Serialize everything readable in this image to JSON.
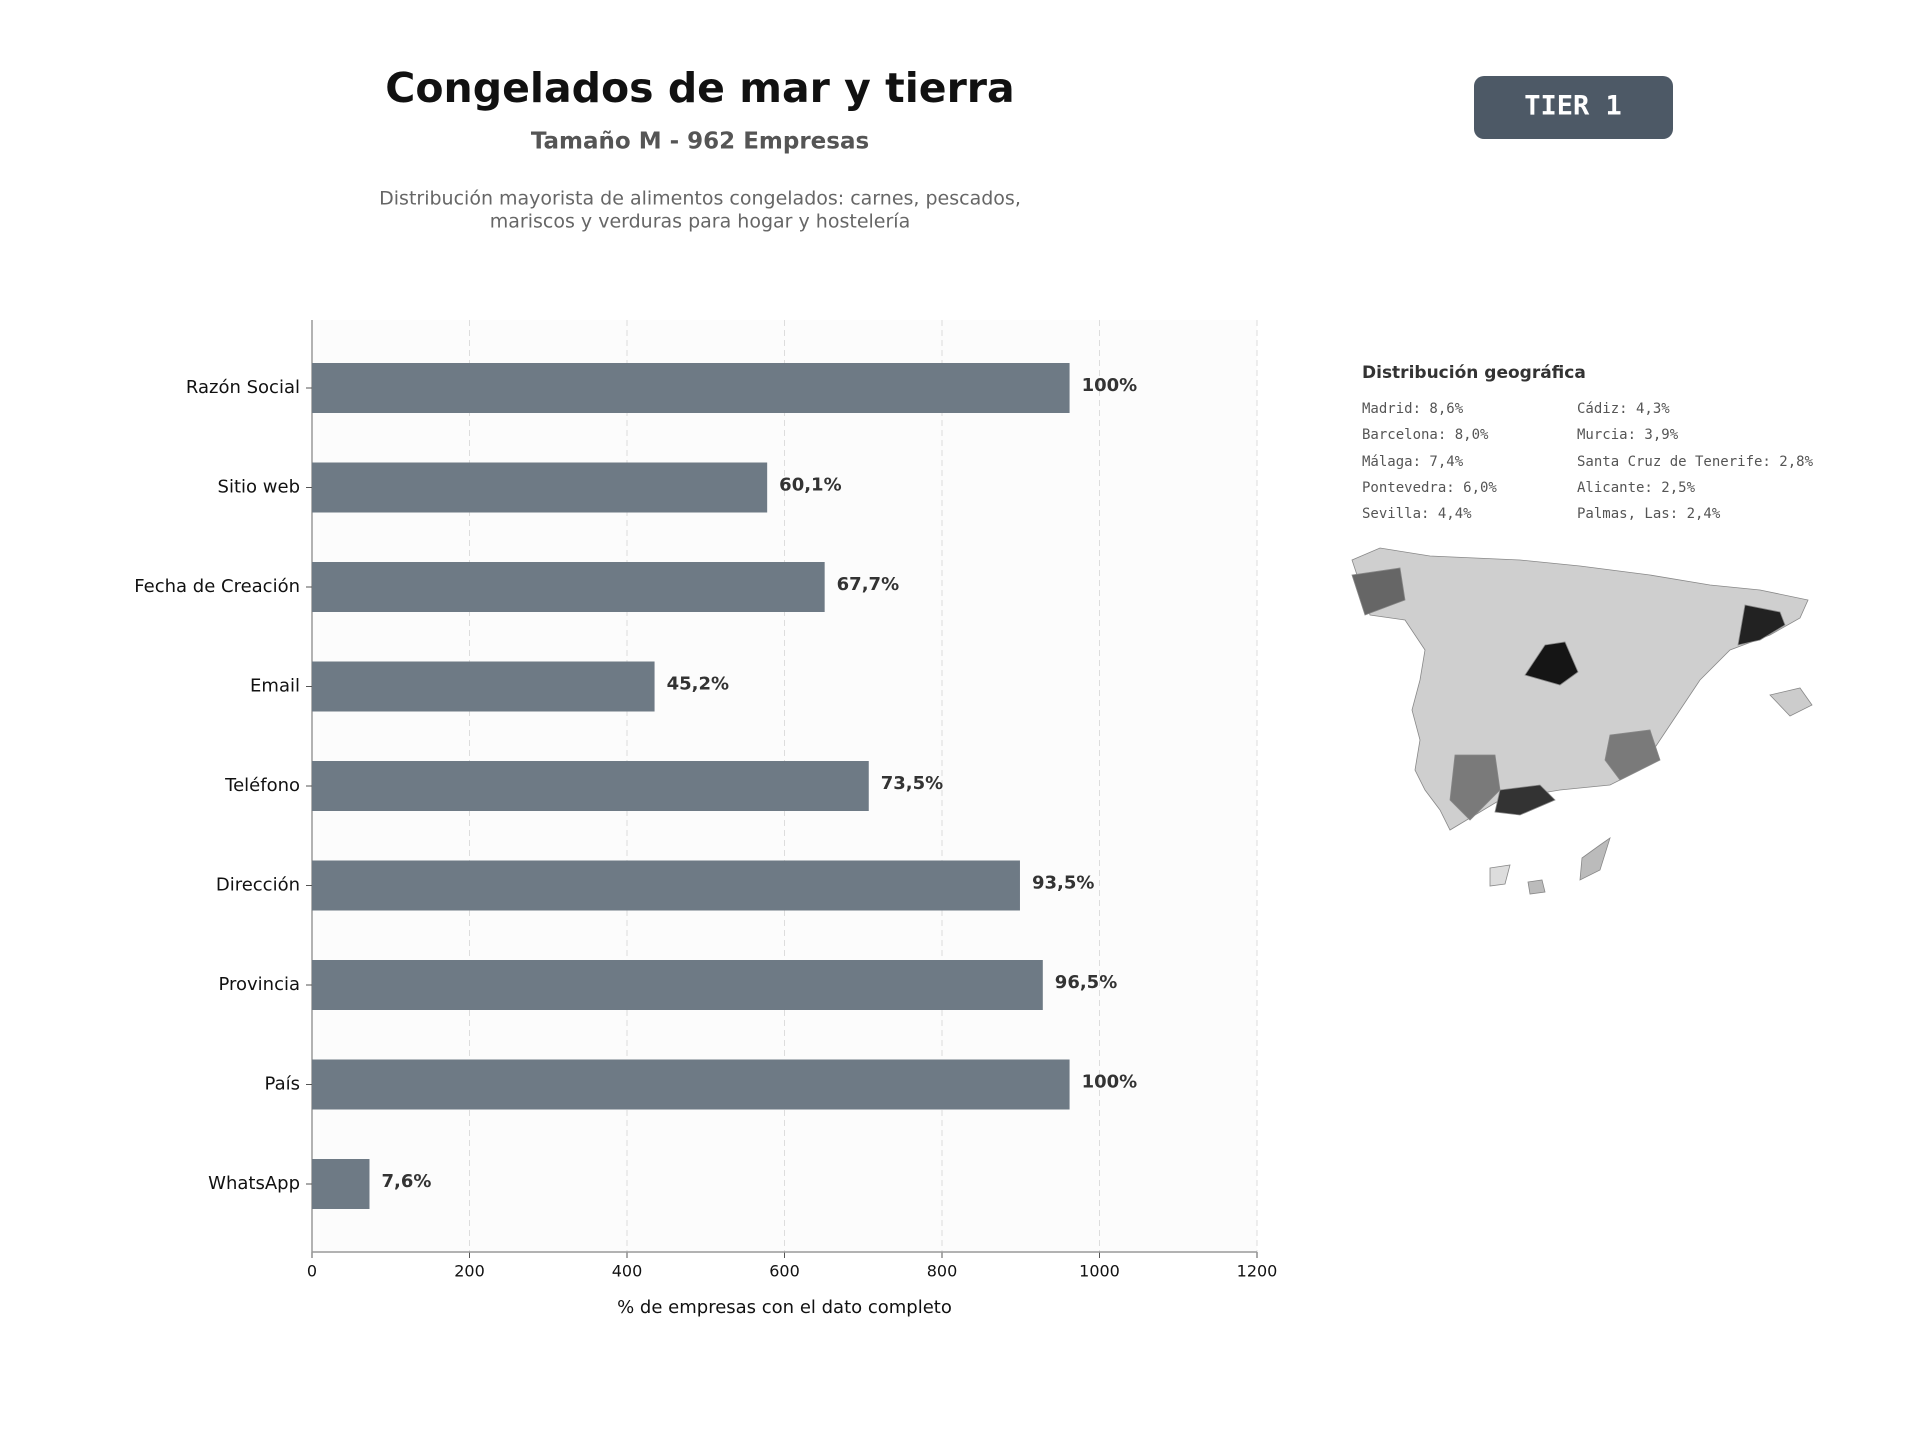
{
  "header": {
    "title": "Congelados de mar y tierra",
    "subtitle": "Tamaño M - 962 Empresas",
    "description": [
      "Distribución mayorista de alimentos congelados: carnes, pescados,",
      "mariscos y verduras para hogar y hostelería"
    ],
    "badge": "TIER 1"
  },
  "chart_data": {
    "type": "barh",
    "x_label": "% de empresas con el dato completo",
    "categories": [
      "Razón Social",
      "Sitio web",
      "Fecha de Creación",
      "Email",
      "Teléfono",
      "Dirección",
      "Provincia",
      "País",
      "WhatsApp"
    ],
    "values": [
      962,
      578,
      651,
      435,
      707,
      899,
      928,
      962,
      73
    ],
    "value_labels": [
      "100%",
      "60,1%",
      "67,7%",
      "45,2%",
      "73,5%",
      "93,5%",
      "96,5%",
      "100%",
      "7,6%"
    ],
    "color": "#6e7a85",
    "xlim": [
      0,
      1200
    ],
    "xticks": [
      0,
      200,
      400,
      600,
      800,
      1000,
      1200
    ],
    "grid": true
  },
  "geo": {
    "title": "Distribución geográfica",
    "items": [
      "Madrid: 8,6%",
      "Barcelona: 8,0%",
      "Málaga: 7,4%",
      "Pontevedra: 6,0%",
      "Sevilla: 4,4%",
      "Cádiz: 4,3%",
      "Murcia: 3,9%",
      "Santa Cruz de Tenerife: 2,8%",
      "Alicante: 2,5%",
      "Palmas, Las: 2,4%"
    ]
  }
}
